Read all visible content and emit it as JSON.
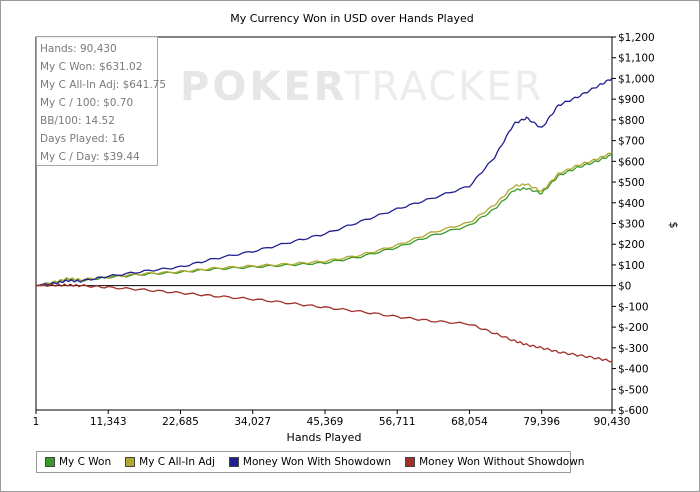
{
  "stats": {
    "hands": "Hands: 90,430",
    "won": "My C Won: $631.02",
    "allin": "My C All-In Adj: $641.75",
    "per100": "My C / 100: $0.70",
    "bb100": "BB/100: 14.52",
    "days": "Days Played: 16",
    "perday": "My C / Day: $39.44"
  },
  "watermark": {
    "left": "POKER",
    "right": "TRACKER"
  },
  "chart_data": {
    "type": "line",
    "title": "My Currency Won in USD over Hands Played",
    "xlabel": "Hands Played",
    "ylabel": "$",
    "xlim": [
      1,
      90430
    ],
    "ylim": [
      -600,
      1200
    ],
    "x_ticks": [
      1,
      11343,
      22685,
      34027,
      45369,
      56711,
      68054,
      79396,
      90430
    ],
    "x_tick_labels": [
      "1",
      "11,343",
      "22,685",
      "34,027",
      "45,369",
      "56,711",
      "68,054",
      "79,396",
      "90,430"
    ],
    "y_ticks": [
      1200,
      1100,
      1000,
      900,
      800,
      700,
      600,
      500,
      400,
      300,
      200,
      100,
      0,
      -100,
      -200,
      -300,
      -400,
      -500,
      -600
    ],
    "y_tick_labels": [
      "$1,200",
      "$1,100",
      "$1,000",
      "$900",
      "$800",
      "$700",
      "$600",
      "$500",
      "$400",
      "$300",
      "$200",
      "$100",
      "$0",
      "$-100",
      "$-200",
      "$-300",
      "$-400",
      "$-500",
      "$-600"
    ],
    "legend_position": "bottom",
    "x": [
      1,
      3000,
      5000,
      7000,
      11343,
      17000,
      22685,
      28000,
      34027,
      40000,
      45369,
      51000,
      56711,
      62000,
      68054,
      72000,
      75000,
      77000,
      79396,
      82000,
      85000,
      88000,
      90430
    ],
    "series": [
      {
        "name": "My C Won",
        "color": "#3a9a2a",
        "values": [
          0,
          15,
          30,
          25,
          40,
          55,
          65,
          80,
          90,
          100,
          110,
          140,
          185,
          240,
          290,
          370,
          460,
          470,
          445,
          530,
          570,
          600,
          631
        ]
      },
      {
        "name": "My C All-In Adj",
        "color": "#b0a830",
        "values": [
          0,
          18,
          35,
          28,
          42,
          58,
          68,
          84,
          95,
          105,
          118,
          148,
          195,
          255,
          305,
          390,
          480,
          490,
          455,
          540,
          580,
          610,
          642
        ]
      },
      {
        "name": "Money Won With Showdown",
        "color": "#202090",
        "values": [
          0,
          12,
          25,
          22,
          45,
          70,
          90,
          130,
          165,
          210,
          250,
          310,
          370,
          420,
          480,
          620,
          780,
          810,
          760,
          870,
          910,
          960,
          1000
        ]
      },
      {
        "name": "Money Won Without Showdown",
        "color": "#a0302a",
        "values": [
          0,
          2,
          3,
          0,
          -8,
          -20,
          -35,
          -50,
          -65,
          -85,
          -105,
          -125,
          -150,
          -170,
          -185,
          -230,
          -265,
          -285,
          -300,
          -320,
          -335,
          -350,
          -365
        ]
      }
    ]
  }
}
